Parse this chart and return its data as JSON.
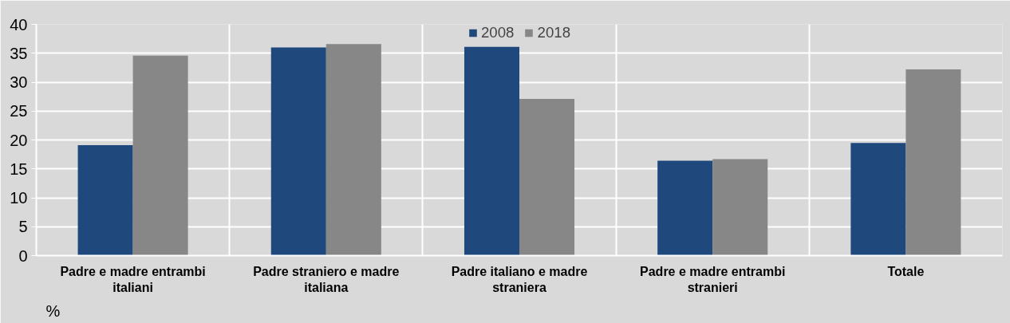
{
  "chart_data": {
    "type": "bar",
    "annotations": [
      "%"
    ],
    "categories": [
      "Padre e madre entrambi italiani",
      "Padre straniero e madre italiana",
      "Padre italiano e madre straniera",
      "Padre e madre entrambi stranieri",
      "Totale"
    ],
    "series": [
      {
        "name": "2008",
        "color": "#1f497d",
        "values": [
          19.1,
          36.0,
          36.1,
          16.4,
          19.5
        ]
      },
      {
        "name": "2018",
        "color": "#878787",
        "values": [
          34.6,
          36.6,
          27.1,
          16.7,
          32.2
        ]
      }
    ],
    "ylim": [
      0,
      40
    ],
    "yticks": [
      0,
      5,
      10,
      15,
      20,
      25,
      30,
      35,
      40
    ],
    "grid": true,
    "legend": "top"
  }
}
